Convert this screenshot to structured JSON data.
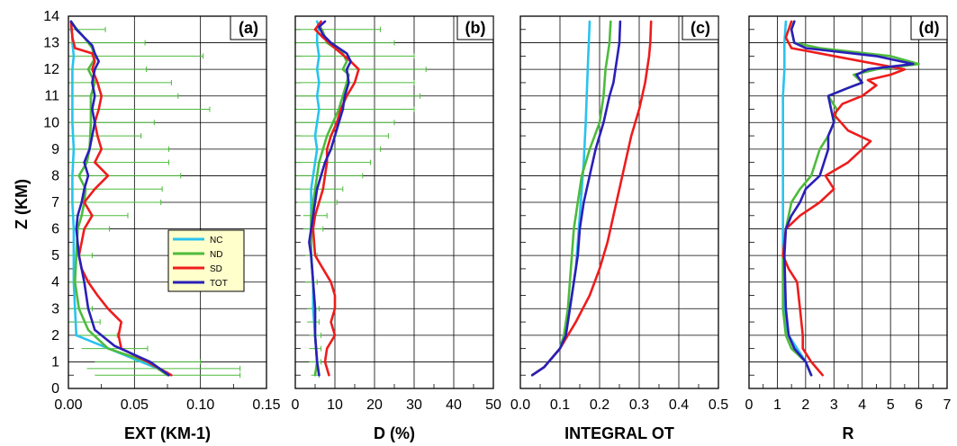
{
  "figure": {
    "ylabel": "Z (KM)",
    "y_tick_labels": [
      "0",
      "1",
      "2",
      "3",
      "4",
      "5",
      "6",
      "7",
      "8",
      "9",
      "10",
      "11",
      "12",
      "13",
      "14"
    ],
    "ylim": [
      0,
      14
    ],
    "colors": {
      "NC": "#29c3ee",
      "ND": "#4dbb3c",
      "SD": "#ee1c1c",
      "TOT": "#2a1fb8",
      "errorbar": "#4dbb3c"
    }
  },
  "chart_data": [
    {
      "type": "line",
      "panel": "(a)",
      "xlabel": "EXT (KM-1)",
      "ylabel": "Z (KM)",
      "xlim": [
        0,
        0.15
      ],
      "ylim": [
        0,
        14
      ],
      "x_tick_labels": [
        "0.00",
        "0.05",
        "0.10",
        "0.15"
      ],
      "legend": {
        "position": "lower-right",
        "entries": [
          "NC",
          "ND",
          "SD",
          "TOT"
        ]
      },
      "errorbars": {
        "series": "ND",
        "z": [
          0.5,
          0.75,
          1.0,
          1.5,
          2.0,
          2.5,
          3.0,
          4.0,
          5.0,
          6.0,
          6.5,
          7.0,
          7.5,
          8.0,
          8.5,
          9.0,
          9.5,
          10.0,
          10.5,
          11.0,
          11.5,
          12.0,
          12.5,
          13.0,
          13.5
        ],
        "x": [
          0.075,
          0.072,
          0.06,
          0.035,
          0.022,
          0.012,
          0.008,
          0.006,
          0.006,
          0.009,
          0.01,
          0.012,
          0.013,
          0.01,
          0.016,
          0.016,
          0.015,
          0.017,
          0.017,
          0.018,
          0.02,
          0.017,
          0.022,
          0.018,
          0.008
        ],
        "xerr": [
          0.055,
          0.058,
          0.04,
          0.025,
          0.015,
          0.012,
          0.01,
          0.01,
          0.012,
          0.022,
          0.035,
          0.058,
          0.058,
          0.075,
          0.06,
          0.06,
          0.04,
          0.048,
          0.09,
          0.065,
          0.058,
          0.042,
          0.08,
          0.04,
          0.02
        ]
      },
      "series": [
        {
          "name": "NC",
          "x": [
            0.075,
            0.075,
            0.006,
            0.005,
            0.004,
            0.004,
            0.004,
            0.003,
            0.003,
            0.004,
            0.003,
            0.003,
            0.003,
            0.004,
            0.003,
            0.003,
            0.002,
            0.002,
            0.002
          ],
          "z": [
            0.5,
            0.6,
            2.0,
            3.0,
            4.0,
            5.0,
            6.0,
            7.0,
            8.0,
            9.0,
            10.0,
            11.0,
            12.0,
            12.5,
            13.0,
            13.3,
            13.5,
            13.7,
            13.8
          ]
        },
        {
          "name": "ND",
          "x": [
            0.075,
            0.06,
            0.03,
            0.015,
            0.008,
            0.005,
            0.006,
            0.007,
            0.01,
            0.012,
            0.013,
            0.008,
            0.014,
            0.016,
            0.017,
            0.017,
            0.02,
            0.015,
            0.02,
            0.018,
            0.012,
            0.005,
            0.002
          ],
          "z": [
            0.5,
            1.0,
            1.5,
            2.2,
            3.0,
            4.0,
            5.0,
            6.0,
            6.5,
            7.0,
            7.5,
            8.0,
            8.5,
            9.0,
            10.0,
            11.0,
            11.5,
            12.0,
            12.4,
            12.8,
            13.2,
            13.6,
            13.8
          ]
        },
        {
          "name": "SD",
          "x": [
            0.078,
            0.06,
            0.04,
            0.038,
            0.04,
            0.03,
            0.022,
            0.015,
            0.01,
            0.008,
            0.01,
            0.012,
            0.018,
            0.012,
            0.02,
            0.03,
            0.02,
            0.025,
            0.022,
            0.02,
            0.023,
            0.025,
            0.022,
            0.018,
            0.02,
            0.018,
            0.005,
            0.003,
            0.002
          ],
          "z": [
            0.5,
            1.0,
            1.5,
            2.0,
            2.5,
            3.0,
            3.5,
            4.0,
            4.5,
            5.0,
            5.5,
            6.0,
            6.5,
            7.0,
            7.5,
            8.0,
            8.5,
            9.0,
            9.5,
            10.0,
            10.5,
            11.0,
            11.5,
            12.0,
            12.3,
            12.6,
            12.8,
            13.2,
            13.8
          ]
        },
        {
          "name": "TOT",
          "x": [
            0.076,
            0.062,
            0.035,
            0.02,
            0.015,
            0.012,
            0.008,
            0.006,
            0.007,
            0.01,
            0.012,
            0.015,
            0.012,
            0.016,
            0.02,
            0.018,
            0.02,
            0.018,
            0.02,
            0.023,
            0.02,
            0.018,
            0.012,
            0.006,
            0.002
          ],
          "z": [
            0.5,
            1.0,
            1.6,
            2.2,
            3.0,
            4.0,
            5.0,
            6.0,
            6.5,
            7.0,
            7.5,
            8.0,
            8.5,
            9.0,
            10.0,
            10.5,
            11.0,
            11.5,
            12.0,
            12.3,
            12.6,
            12.9,
            13.2,
            13.5,
            13.8
          ]
        }
      ]
    },
    {
      "type": "line",
      "panel": "(b)",
      "xlabel": "D (%)",
      "ylabel": "Z (KM)",
      "xlim": [
        0,
        50
      ],
      "ylim": [
        0,
        14
      ],
      "x_tick_labels": [
        "0",
        "10",
        "20",
        "30",
        "40",
        "50"
      ],
      "errorbars": {
        "series": "ND",
        "z": [
          0.5,
          1.0,
          1.5,
          2.0,
          2.5,
          3.0,
          4.0,
          5.0,
          6.0,
          6.5,
          7.0,
          7.5,
          8.0,
          8.5,
          9.0,
          9.5,
          10.0,
          10.5,
          11.0,
          11.5,
          12.0,
          12.5,
          13.0,
          13.5
        ],
        "x": [
          5,
          5,
          5,
          5,
          4.5,
          4.5,
          4,
          4,
          4.5,
          5,
          5.5,
          6,
          7,
          8,
          9.5,
          10.5,
          11,
          12,
          12.5,
          13,
          13,
          10,
          8,
          6.5
        ],
        "xerr": [
          1,
          1.5,
          1.5,
          1.5,
          1.5,
          1.5,
          1.5,
          1.5,
          2.5,
          3,
          5,
          6,
          10,
          11,
          12,
          13,
          14,
          18,
          19,
          17,
          20,
          20,
          17,
          15
        ]
      },
      "series": [
        {
          "name": "NC",
          "x": [
            6,
            5.5,
            5,
            4.5,
            4.5,
            4,
            4,
            4,
            4,
            4,
            4.5,
            5,
            5.5,
            5,
            5.5,
            6,
            5.5,
            6,
            5.5,
            6,
            5.5,
            5.5,
            6,
            5.5
          ],
          "z": [
            0.5,
            1.0,
            2.0,
            3.0,
            4.0,
            5.0,
            6.0,
            6.5,
            7.0,
            7.5,
            8.0,
            8.5,
            9.0,
            9.5,
            10.0,
            10.5,
            11.0,
            11.5,
            12.0,
            12.5,
            13.0,
            13.3,
            13.6,
            13.8
          ]
        },
        {
          "name": "ND",
          "x": [
            5,
            5.5,
            5,
            5,
            4.5,
            4,
            4,
            4,
            4.5,
            5,
            5.5,
            6,
            7,
            8,
            9.5,
            11,
            12,
            13,
            13.5,
            12,
            13,
            12,
            8,
            7,
            6
          ],
          "z": [
            0.5,
            1.0,
            2.0,
            3.0,
            4.0,
            5.0,
            6.0,
            6.5,
            7.0,
            7.5,
            8.0,
            8.5,
            9.0,
            9.5,
            10.0,
            10.5,
            11.0,
            11.5,
            11.8,
            12.0,
            12.3,
            12.6,
            13.0,
            13.4,
            13.7
          ]
        },
        {
          "name": "SD",
          "x": [
            8.5,
            7.5,
            8,
            10,
            9,
            10,
            10,
            9,
            7,
            5,
            4.5,
            5,
            6,
            7,
            7.5,
            8,
            8,
            9,
            10.5,
            11.5,
            13,
            15,
            16,
            14,
            10,
            7,
            5,
            6.5
          ],
          "z": [
            0.5,
            1.0,
            1.5,
            2.0,
            2.5,
            3.0,
            3.5,
            4.0,
            4.5,
            5.0,
            6.0,
            6.5,
            7.0,
            7.5,
            8.0,
            8.5,
            9.0,
            9.5,
            10.0,
            10.5,
            11.0,
            11.5,
            12.0,
            12.3,
            12.8,
            13.2,
            13.5,
            13.8
          ]
        },
        {
          "name": "TOT",
          "x": [
            6,
            5.5,
            5,
            5,
            4.5,
            4,
            3.5,
            4,
            4.5,
            5,
            5.5,
            6.5,
            7.5,
            9,
            10,
            11,
            12,
            12.5,
            13.5,
            13,
            14,
            13,
            9,
            7,
            6,
            7.5
          ],
          "z": [
            0.5,
            1.0,
            2.0,
            3.0,
            4.0,
            5.0,
            5.5,
            6.0,
            6.5,
            7.0,
            7.5,
            8.0,
            8.5,
            9.0,
            9.5,
            10.0,
            10.5,
            11.0,
            11.5,
            12.0,
            12.3,
            12.6,
            13.0,
            13.3,
            13.6,
            13.8
          ]
        }
      ]
    },
    {
      "type": "line",
      "panel": "(c)",
      "xlabel": "INTEGRAL  OT",
      "ylabel": "Z (KM)",
      "xlim": [
        0,
        0.5
      ],
      "ylim": [
        0,
        14
      ],
      "x_tick_labels": [
        "0.0",
        "0.1",
        "0.2",
        "0.3",
        "0.4",
        "0.5"
      ],
      "series": [
        {
          "name": "NC",
          "x": [
            0.03,
            0.06,
            0.1,
            0.12,
            0.13,
            0.14,
            0.145,
            0.15,
            0.155,
            0.16,
            0.165,
            0.17,
            0.175
          ],
          "z": [
            0.5,
            0.8,
            1.5,
            2.5,
            3.5,
            4.5,
            5.5,
            6.5,
            7.5,
            8.5,
            10.0,
            12.0,
            13.8
          ]
        },
        {
          "name": "ND",
          "x": [
            0.03,
            0.06,
            0.1,
            0.11,
            0.12,
            0.125,
            0.13,
            0.135,
            0.145,
            0.155,
            0.175,
            0.2,
            0.21,
            0.215,
            0.22,
            0.225,
            0.228
          ],
          "z": [
            0.5,
            0.8,
            1.5,
            2.0,
            3.0,
            4.0,
            5.0,
            6.0,
            7.0,
            8.0,
            9.0,
            10.0,
            11.0,
            12.0,
            12.5,
            13.0,
            13.8
          ]
        },
        {
          "name": "SD",
          "x": [
            0.03,
            0.06,
            0.1,
            0.14,
            0.175,
            0.2,
            0.22,
            0.235,
            0.25,
            0.265,
            0.28,
            0.3,
            0.315,
            0.32,
            0.325,
            0.328,
            0.33
          ],
          "z": [
            0.5,
            0.8,
            1.5,
            2.5,
            3.5,
            4.5,
            5.5,
            6.5,
            7.5,
            8.5,
            9.5,
            10.5,
            11.5,
            12.0,
            12.5,
            13.0,
            13.8
          ]
        },
        {
          "name": "TOT",
          "x": [
            0.03,
            0.06,
            0.1,
            0.115,
            0.125,
            0.135,
            0.145,
            0.15,
            0.16,
            0.175,
            0.19,
            0.21,
            0.225,
            0.235,
            0.24,
            0.245,
            0.25,
            0.252
          ],
          "z": [
            0.5,
            0.8,
            1.5,
            2.0,
            3.0,
            4.0,
            5.0,
            6.0,
            7.0,
            8.0,
            9.0,
            10.0,
            11.0,
            11.5,
            12.0,
            12.5,
            13.0,
            13.8
          ]
        }
      ]
    },
    {
      "type": "line",
      "panel": "(d)",
      "xlabel": "R",
      "ylabel": "Z (KM)",
      "xlim": [
        0,
        7
      ],
      "ylim": [
        0,
        14
      ],
      "x_tick_labels": [
        "0",
        "1",
        "2",
        "3",
        "4",
        "5",
        "6",
        "7"
      ],
      "series": [
        {
          "name": "NC",
          "x": [
            2.2,
            2.0,
            1.7,
            1.4,
            1.3,
            1.25,
            1.2,
            1.2,
            1.2,
            1.2,
            1.2,
            1.2,
            1.2,
            1.2,
            1.25,
            1.25,
            1.25,
            1.3
          ],
          "z": [
            0.5,
            1.0,
            1.5,
            2.0,
            2.5,
            3.0,
            4.0,
            5.0,
            6.0,
            7.0,
            8.0,
            9.0,
            10.0,
            11.0,
            12.0,
            12.5,
            13.0,
            13.8
          ]
        },
        {
          "name": "ND",
          "x": [
            2.2,
            2.0,
            1.5,
            1.3,
            1.2,
            1.2,
            1.3,
            1.5,
            1.8,
            2.2,
            2.5,
            2.8,
            3.0,
            3.1,
            2.8,
            3.5,
            4.0,
            3.7,
            4.5,
            6.0,
            5.0,
            2.5,
            1.6,
            1.5,
            1.6
          ],
          "z": [
            0.5,
            1.0,
            1.5,
            2.0,
            3.0,
            5.0,
            6.0,
            7.0,
            7.5,
            8.0,
            9.0,
            9.5,
            10.0,
            10.5,
            11.0,
            11.3,
            11.5,
            11.8,
            12.0,
            12.2,
            12.5,
            12.8,
            13.0,
            13.5,
            13.8
          ]
        },
        {
          "name": "SD",
          "x": [
            2.6,
            2.2,
            1.9,
            1.9,
            1.8,
            1.7,
            1.4,
            1.2,
            1.3,
            1.8,
            2.5,
            3.0,
            2.7,
            3.5,
            4.0,
            4.3,
            3.5,
            3.0,
            3.3,
            4.0,
            4.5,
            4.2,
            5.0,
            5.5,
            4.0,
            1.5,
            1.3,
            1.4,
            1.5
          ],
          "z": [
            0.5,
            1.0,
            1.5,
            2.0,
            3.0,
            4.0,
            4.5,
            5.0,
            6.0,
            6.5,
            7.0,
            7.5,
            8.0,
            8.5,
            9.0,
            9.3,
            9.7,
            10.3,
            10.7,
            11.0,
            11.4,
            11.6,
            11.8,
            12.0,
            12.3,
            12.8,
            13.2,
            13.5,
            13.8
          ]
        },
        {
          "name": "TOT",
          "x": [
            2.2,
            2.0,
            1.6,
            1.4,
            1.3,
            1.25,
            1.3,
            1.5,
            1.8,
            2.0,
            2.5,
            2.8,
            2.8,
            3.0,
            2.8,
            3.5,
            4.0,
            3.8,
            4.2,
            5.8,
            4.5,
            2.0,
            1.6,
            1.5,
            1.6
          ],
          "z": [
            0.5,
            1.0,
            1.5,
            2.0,
            3.0,
            5.0,
            6.0,
            6.5,
            7.0,
            7.5,
            8.0,
            9.0,
            9.5,
            10.0,
            11.0,
            11.3,
            11.5,
            11.8,
            12.0,
            12.2,
            12.5,
            12.8,
            13.0,
            13.5,
            13.8
          ]
        }
      ]
    }
  ]
}
